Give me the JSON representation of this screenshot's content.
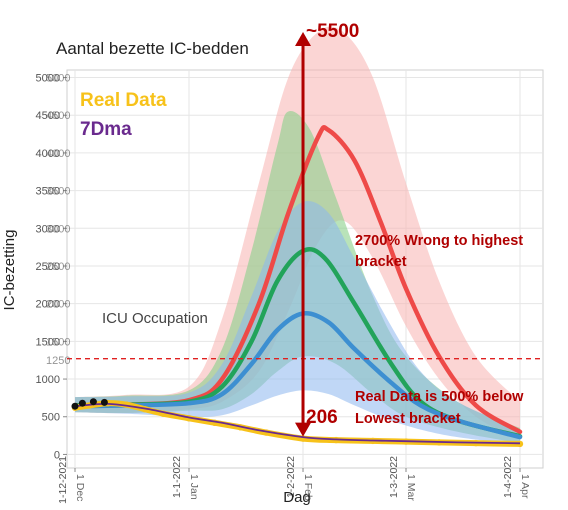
{
  "chart_data": {
    "type": "line",
    "title": "Aantal bezette IC-bedden",
    "xlabel": "Dag",
    "ylabel": "IC-bezetting",
    "ylim": [
      -180,
      5100
    ],
    "grid": true,
    "x_ticks": [
      {
        "label": "1 Dec",
        "label2": "1-12-2021",
        "date": "2021-12-01"
      },
      {
        "label": "1 Jan",
        "label2": "1-1-2022",
        "date": "2022-01-01"
      },
      {
        "label": "1 Feb",
        "label2": "1-2-2022",
        "date": "2022-02-01"
      },
      {
        "label": "1 Mar",
        "label2": "1-3-2022",
        "date": "2022-03-01"
      },
      {
        "label": "1 Apr",
        "label2": "1-4-2022",
        "date": "2022-04-01"
      }
    ],
    "y_ticks": [
      {
        "label": "0",
        "value": 0
      },
      {
        "label": "500",
        "value": 500
      },
      {
        "label": "1000",
        "value": 1000
      },
      {
        "label": "1500",
        "value": 1500
      },
      {
        "label": "2000",
        "value": 2000
      },
      {
        "label": "2500",
        "value": 2500
      },
      {
        "label": "3000",
        "value": 3000
      },
      {
        "label": "3500",
        "value": 3500
      },
      {
        "label": "4000",
        "value": 4000
      },
      {
        "label": "4500",
        "value": 4500
      },
      {
        "label": "5000",
        "value": 5000
      }
    ],
    "y_overlay_labels": [
      {
        "label": "1250",
        "value": 1250
      },
      {
        "label": "1500",
        "value": 1500
      },
      {
        "label": "2000",
        "value": 2000
      },
      {
        "label": "2500",
        "value": 2500
      },
      {
        "label": "3000",
        "value": 3000
      },
      {
        "label": "3500",
        "value": 3500
      },
      {
        "label": "4000",
        "value": 4000
      },
      {
        "label": "4500",
        "value": 4500
      },
      {
        "label": "5000",
        "value": 5000
      }
    ],
    "threshold": {
      "value": 1270,
      "color": "#e02020"
    },
    "scenarios": [
      {
        "color": "#ee4a48",
        "band": "#f7b3b0",
        "band_opacity": 0.55,
        "points": [
          [
            "2021-12-01",
            650
          ],
          [
            "2021-12-15",
            660
          ],
          [
            "2022-01-01",
            720
          ],
          [
            "2022-01-10",
            1000
          ],
          [
            "2022-01-20",
            2000
          ],
          [
            "2022-01-28",
            3200
          ],
          [
            "2022-02-05",
            4200
          ],
          [
            "2022-02-08",
            4300
          ],
          [
            "2022-02-15",
            3900
          ],
          [
            "2022-02-22",
            3100
          ],
          [
            "2022-03-01",
            2200
          ],
          [
            "2022-03-10",
            1300
          ],
          [
            "2022-03-20",
            650
          ],
          [
            "2022-04-01",
            300
          ]
        ],
        "upper": [
          [
            "2021-12-01",
            760
          ],
          [
            "2021-12-15",
            790
          ],
          [
            "2022-01-01",
            900
          ],
          [
            "2022-01-10",
            1800
          ],
          [
            "2022-01-20",
            3600
          ],
          [
            "2022-01-28",
            5000
          ],
          [
            "2022-02-05",
            5600
          ],
          [
            "2022-02-12",
            5600
          ],
          [
            "2022-02-20",
            5000
          ],
          [
            "2022-03-01",
            3600
          ],
          [
            "2022-03-10",
            2300
          ],
          [
            "2022-03-20",
            1300
          ],
          [
            "2022-04-01",
            700
          ]
        ],
        "lower": [
          [
            "2021-12-01",
            560
          ],
          [
            "2021-12-15",
            550
          ],
          [
            "2022-01-01",
            600
          ],
          [
            "2022-01-10",
            700
          ],
          [
            "2022-01-20",
            1100
          ],
          [
            "2022-01-28",
            1900
          ],
          [
            "2022-02-05",
            2800
          ],
          [
            "2022-02-12",
            3100
          ],
          [
            "2022-02-20",
            2600
          ],
          [
            "2022-03-01",
            1700
          ],
          [
            "2022-03-10",
            1000
          ],
          [
            "2022-03-20",
            500
          ],
          [
            "2022-04-01",
            200
          ]
        ]
      },
      {
        "color": "#22a35a",
        "band": "#8bd08a",
        "band_opacity": 0.6,
        "points": [
          [
            "2021-12-01",
            650
          ],
          [
            "2021-12-15",
            660
          ],
          [
            "2022-01-01",
            700
          ],
          [
            "2022-01-10",
            900
          ],
          [
            "2022-01-18",
            1500
          ],
          [
            "2022-01-25",
            2300
          ],
          [
            "2022-02-01",
            2700
          ],
          [
            "2022-02-07",
            2600
          ],
          [
            "2022-02-15",
            2000
          ],
          [
            "2022-02-25",
            1200
          ],
          [
            "2022-03-05",
            700
          ],
          [
            "2022-03-15",
            450
          ],
          [
            "2022-04-01",
            240
          ]
        ],
        "upper": [
          [
            "2021-12-01",
            760
          ],
          [
            "2021-12-15",
            780
          ],
          [
            "2022-01-01",
            850
          ],
          [
            "2022-01-10",
            1400
          ],
          [
            "2022-01-18",
            2700
          ],
          [
            "2022-01-25",
            4100
          ],
          [
            "2022-01-28",
            4550
          ],
          [
            "2022-02-03",
            4300
          ],
          [
            "2022-02-10",
            3400
          ],
          [
            "2022-02-20",
            2100
          ],
          [
            "2022-03-01",
            1300
          ],
          [
            "2022-03-15",
            700
          ],
          [
            "2022-04-01",
            350
          ]
        ],
        "lower": [
          [
            "2021-12-01",
            560
          ],
          [
            "2021-12-15",
            550
          ],
          [
            "2022-01-01",
            580
          ],
          [
            "2022-01-10",
            600
          ],
          [
            "2022-01-18",
            800
          ],
          [
            "2022-01-25",
            1100
          ],
          [
            "2022-02-01",
            1300
          ],
          [
            "2022-02-10",
            1200
          ],
          [
            "2022-02-20",
            800
          ],
          [
            "2022-03-01",
            500
          ],
          [
            "2022-03-15",
            300
          ],
          [
            "2022-04-01",
            150
          ]
        ]
      },
      {
        "color": "#3d8fd1",
        "band": "#8cb6ee",
        "band_opacity": 0.55,
        "points": [
          [
            "2021-12-01",
            640
          ],
          [
            "2021-12-15",
            650
          ],
          [
            "2022-01-01",
            680
          ],
          [
            "2022-01-10",
            800
          ],
          [
            "2022-01-18",
            1200
          ],
          [
            "2022-01-25",
            1650
          ],
          [
            "2022-02-01",
            1870
          ],
          [
            "2022-02-08",
            1750
          ],
          [
            "2022-02-15",
            1400
          ],
          [
            "2022-02-25",
            950
          ],
          [
            "2022-03-05",
            650
          ],
          [
            "2022-03-15",
            450
          ],
          [
            "2022-04-01",
            230
          ]
        ],
        "upper": [
          [
            "2021-12-01",
            760
          ],
          [
            "2021-12-15",
            770
          ],
          [
            "2022-01-01",
            820
          ],
          [
            "2022-01-10",
            1200
          ],
          [
            "2022-01-18",
            2100
          ],
          [
            "2022-01-25",
            2950
          ],
          [
            "2022-02-01",
            3350
          ],
          [
            "2022-02-08",
            3200
          ],
          [
            "2022-02-15",
            2600
          ],
          [
            "2022-02-25",
            1700
          ],
          [
            "2022-03-05",
            1100
          ],
          [
            "2022-03-15",
            700
          ],
          [
            "2022-04-01",
            330
          ]
        ],
        "lower": [
          [
            "2021-12-01",
            560
          ],
          [
            "2021-12-15",
            540
          ],
          [
            "2022-01-01",
            500
          ],
          [
            "2022-01-10",
            520
          ],
          [
            "2022-01-18",
            650
          ],
          [
            "2022-01-25",
            780
          ],
          [
            "2022-02-01",
            850
          ],
          [
            "2022-02-08",
            800
          ],
          [
            "2022-02-15",
            650
          ],
          [
            "2022-02-25",
            450
          ],
          [
            "2022-03-05",
            330
          ],
          [
            "2022-03-15",
            230
          ],
          [
            "2022-04-01",
            130
          ]
        ]
      }
    ],
    "series": [
      {
        "name": "Real Data",
        "color": "#f7c21a",
        "points": [
          [
            "2021-12-01",
            620
          ],
          [
            "2021-12-05",
            650
          ],
          [
            "2021-12-10",
            680
          ],
          [
            "2021-12-15",
            660
          ],
          [
            "2021-12-20",
            600
          ],
          [
            "2021-12-25",
            540
          ],
          [
            "2022-01-01",
            480
          ],
          [
            "2022-01-08",
            420
          ],
          [
            "2022-01-15",
            360
          ],
          [
            "2022-01-22",
            290
          ],
          [
            "2022-02-01",
            210
          ],
          [
            "2022-02-10",
            190
          ],
          [
            "2022-02-20",
            180
          ],
          [
            "2022-03-01",
            170
          ],
          [
            "2022-03-10",
            160
          ],
          [
            "2022-03-20",
            150
          ],
          [
            "2022-04-01",
            140
          ]
        ]
      },
      {
        "name": "7Dma",
        "color": "#6a2a8e",
        "points": [
          [
            "2021-12-01",
            640
          ],
          [
            "2021-12-10",
            670
          ],
          [
            "2021-12-20",
            610
          ],
          [
            "2022-01-01",
            490
          ],
          [
            "2022-01-10",
            420
          ],
          [
            "2022-01-20",
            320
          ],
          [
            "2022-02-01",
            230
          ],
          [
            "2022-02-10",
            200
          ],
          [
            "2022-02-20",
            185
          ],
          [
            "2022-03-01",
            175
          ],
          [
            "2022-03-15",
            160
          ],
          [
            "2022-04-01",
            148
          ]
        ]
      }
    ],
    "black_start_points": [
      [
        "2021-12-01",
        640
      ],
      [
        "2021-12-03",
        680
      ],
      [
        "2021-12-06",
        700
      ],
      [
        "2021-12-09",
        690
      ]
    ],
    "arrow": {
      "date": "2022-02-01",
      "top": 5600,
      "bottom": 210,
      "color": "#b00000"
    },
    "annotations": {
      "top_value": "~5500",
      "real_value": "206",
      "wrong_text": [
        "2700% Wrong to highest",
        "bracket"
      ],
      "below_text": [
        "Real Data is 500% below",
        "Lowest bracket"
      ],
      "icu_label": "ICU Occupation"
    },
    "legend": [
      {
        "label": "Real Data",
        "color": "#f7c21a"
      },
      {
        "label": "7Dma",
        "color": "#6a2a8e"
      }
    ],
    "legend_placement": "top-left",
    "annotation_color": "#b00000"
  }
}
